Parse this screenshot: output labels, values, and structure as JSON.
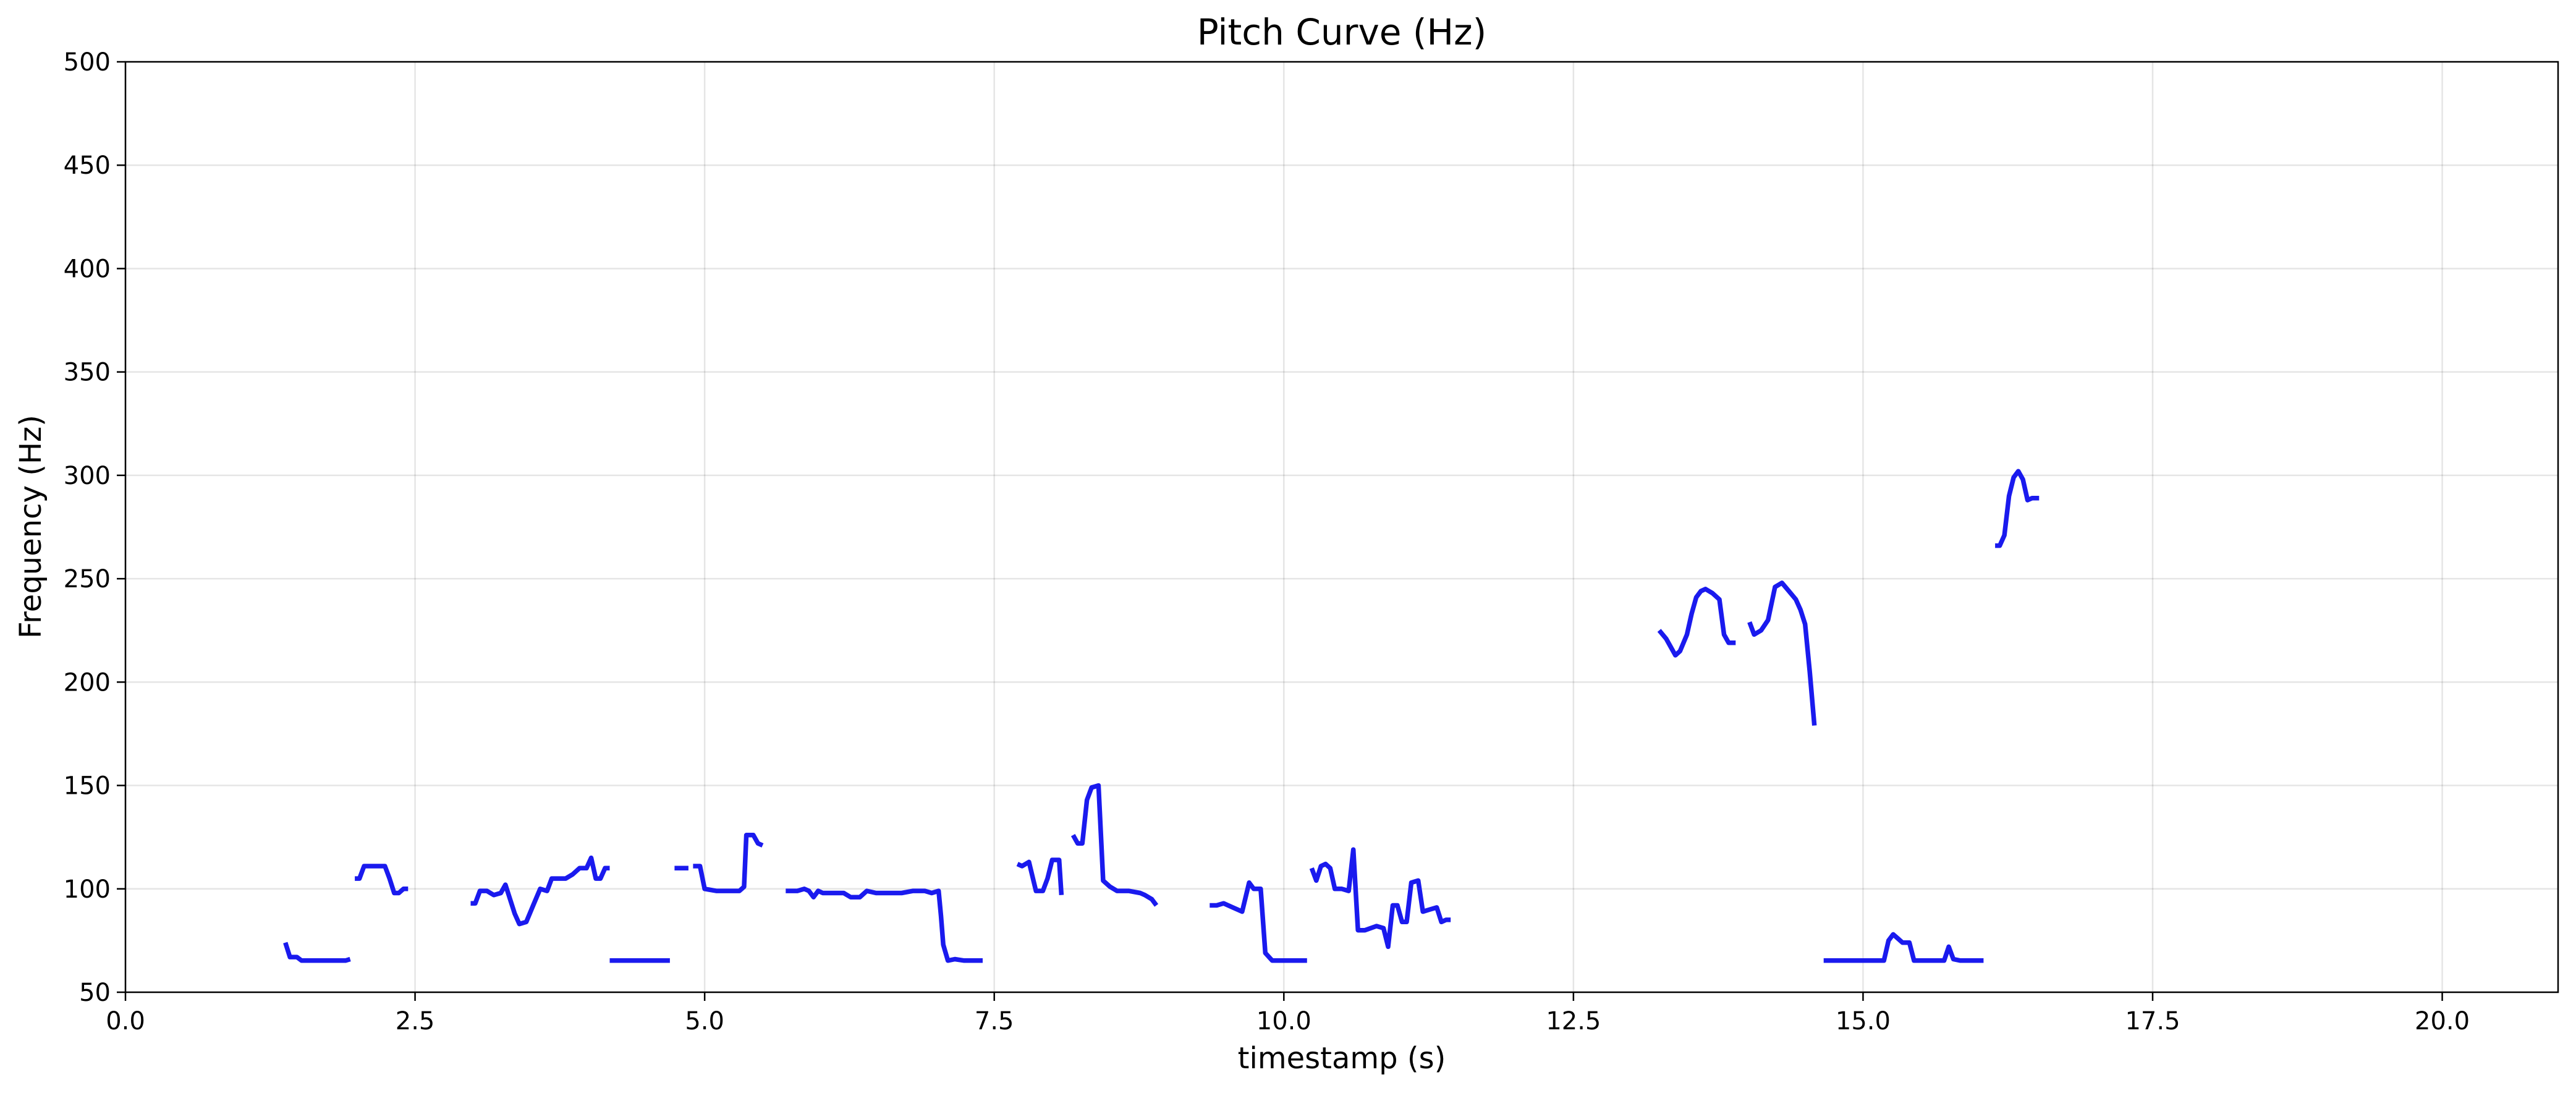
{
  "chart_data": {
    "type": "line",
    "title": "Pitch Curve (Hz)",
    "xlabel": "timestamp (s)",
    "ylabel": "Frequency (Hz)",
    "xlim": [
      0,
      21
    ],
    "ylim": [
      50,
      500
    ],
    "xticks": [
      0,
      2.5,
      5,
      7.5,
      10,
      12.5,
      15,
      17.5,
      20
    ],
    "xtick_labels": [
      "0.0",
      "2.5",
      "5.0",
      "7.5",
      "10.0",
      "12.5",
      "15.0",
      "17.5",
      "20.0"
    ],
    "yticks": [
      50,
      100,
      150,
      200,
      250,
      300,
      350,
      400,
      450,
      500
    ],
    "ytick_labels": [
      "50",
      "100",
      "150",
      "200",
      "250",
      "300",
      "350",
      "400",
      "450",
      "500"
    ],
    "grid": true,
    "line_color": "#1a1aee",
    "series": [
      {
        "segments": [
          [
            [
              1.38,
              74
            ],
            [
              1.42,
              67
            ],
            [
              1.48,
              67
            ],
            [
              1.52,
              65.3
            ],
            [
              1.6,
              65.3
            ],
            [
              1.7,
              65.3
            ],
            [
              1.8,
              65.3
            ],
            [
              1.9,
              65.3
            ],
            [
              1.94,
              66
            ]
          ],
          [
            [
              1.98,
              105
            ],
            [
              2.02,
              105
            ],
            [
              2.06,
              111
            ],
            [
              2.12,
              111
            ],
            [
              2.2,
              111
            ],
            [
              2.24,
              111
            ],
            [
              2.28,
              105
            ],
            [
              2.32,
              98
            ],
            [
              2.36,
              98
            ],
            [
              2.4,
              100
            ],
            [
              2.44,
              100
            ]
          ],
          [
            [
              2.98,
              93
            ],
            [
              3.02,
              93
            ],
            [
              3.06,
              99
            ],
            [
              3.12,
              99
            ],
            [
              3.18,
              97
            ],
            [
              3.24,
              98
            ],
            [
              3.28,
              102
            ],
            [
              3.32,
              95
            ],
            [
              3.36,
              88
            ],
            [
              3.4,
              83
            ],
            [
              3.46,
              84
            ],
            [
              3.52,
              92
            ],
            [
              3.58,
              100
            ],
            [
              3.64,
              99
            ],
            [
              3.68,
              105
            ],
            [
              3.74,
              105
            ],
            [
              3.8,
              105
            ],
            [
              3.86,
              107
            ],
            [
              3.92,
              110
            ],
            [
              3.98,
              110
            ],
            [
              4.02,
              115
            ],
            [
              4.06,
              105
            ],
            [
              4.1,
              105
            ],
            [
              4.14,
              110
            ],
            [
              4.18,
              110
            ]
          ],
          [
            [
              4.18,
              65.3
            ],
            [
              4.3,
              65.3
            ],
            [
              4.45,
              65.3
            ],
            [
              4.6,
              65.3
            ],
            [
              4.7,
              65.3
            ]
          ],
          [
            [
              4.74,
              110
            ],
            [
              4.86,
              110
            ]
          ],
          [
            [
              4.9,
              111
            ],
            [
              4.96,
              111
            ],
            [
              5.0,
              100
            ],
            [
              5.1,
              99
            ],
            [
              5.2,
              99
            ],
            [
              5.3,
              99
            ],
            [
              5.34,
              101
            ],
            [
              5.36,
              126
            ],
            [
              5.42,
              126
            ],
            [
              5.46,
              122
            ],
            [
              5.5,
              121
            ]
          ],
          [
            [
              5.7,
              99
            ],
            [
              5.8,
              99
            ],
            [
              5.86,
              100
            ],
            [
              5.9,
              99
            ],
            [
              5.94,
              96
            ],
            [
              5.98,
              99
            ],
            [
              6.02,
              98
            ],
            [
              6.1,
              98
            ],
            [
              6.2,
              98
            ],
            [
              6.26,
              96
            ],
            [
              6.34,
              96
            ],
            [
              6.4,
              99
            ],
            [
              6.48,
              98
            ],
            [
              6.6,
              98
            ],
            [
              6.7,
              98
            ],
            [
              6.8,
              99
            ],
            [
              6.9,
              99
            ],
            [
              6.96,
              98
            ],
            [
              7.02,
              99
            ],
            [
              7.04,
              87
            ],
            [
              7.06,
              73
            ],
            [
              7.1,
              65.3
            ],
            [
              7.16,
              66
            ],
            [
              7.24,
              65.3
            ],
            [
              7.32,
              65.3
            ],
            [
              7.4,
              65.3
            ]
          ],
          [
            [
              7.7,
              112
            ],
            [
              7.74,
              111
            ],
            [
              7.8,
              113
            ],
            [
              7.86,
              99
            ],
            [
              7.92,
              99
            ],
            [
              7.96,
              105
            ],
            [
              8.0,
              114
            ],
            [
              8.06,
              114
            ],
            [
              8.08,
              97
            ]
          ],
          [
            [
              8.18,
              126
            ],
            [
              8.22,
              122
            ],
            [
              8.26,
              122
            ],
            [
              8.3,
              143
            ],
            [
              8.34,
              149
            ],
            [
              8.4,
              150
            ],
            [
              8.44,
              104
            ],
            [
              8.5,
              101
            ],
            [
              8.56,
              99
            ],
            [
              8.66,
              99
            ],
            [
              8.76,
              98
            ],
            [
              8.8,
              97
            ],
            [
              8.86,
              95
            ],
            [
              8.9,
              92
            ]
          ],
          [
            [
              9.36,
              92
            ],
            [
              9.42,
              92
            ],
            [
              9.48,
              93
            ],
            [
              9.56,
              91
            ],
            [
              9.64,
              89
            ],
            [
              9.7,
              103
            ],
            [
              9.74,
              100
            ],
            [
              9.8,
              100
            ],
            [
              9.84,
              69
            ],
            [
              9.9,
              65.3
            ],
            [
              10.0,
              65.3
            ],
            [
              10.1,
              65.3
            ],
            [
              10.2,
              65.3
            ]
          ],
          [
            [
              10.24,
              110
            ],
            [
              10.28,
              104
            ],
            [
              10.32,
              111
            ],
            [
              10.36,
              112
            ],
            [
              10.4,
              110
            ],
            [
              10.44,
              100
            ],
            [
              10.5,
              100
            ],
            [
              10.56,
              99
            ],
            [
              10.6,
              119
            ],
            [
              10.64,
              80
            ],
            [
              10.7,
              80
            ],
            [
              10.8,
              82
            ],
            [
              10.86,
              81
            ],
            [
              10.9,
              72
            ],
            [
              10.94,
              92
            ],
            [
              10.98,
              92
            ],
            [
              11.02,
              84
            ],
            [
              11.06,
              84
            ],
            [
              11.1,
              103
            ],
            [
              11.16,
              104
            ],
            [
              11.2,
              89
            ],
            [
              11.26,
              90
            ],
            [
              11.32,
              91
            ],
            [
              11.36,
              84
            ],
            [
              11.4,
              85
            ],
            [
              11.44,
              85
            ]
          ],
          [
            [
              13.24,
              225
            ],
            [
              13.3,
              221
            ],
            [
              13.34,
              217
            ],
            [
              13.38,
              213
            ],
            [
              13.42,
              215
            ],
            [
              13.48,
              223
            ],
            [
              13.52,
              233
            ],
            [
              13.56,
              241
            ],
            [
              13.6,
              244
            ],
            [
              13.64,
              245
            ],
            [
              13.7,
              243
            ],
            [
              13.76,
              240
            ],
            [
              13.8,
              223
            ],
            [
              13.84,
              219
            ],
            [
              13.9,
              219
            ]
          ],
          [
            [
              14.02,
              229
            ],
            [
              14.06,
              223
            ],
            [
              14.12,
              225
            ],
            [
              14.18,
              230
            ],
            [
              14.24,
              246
            ],
            [
              14.3,
              248
            ],
            [
              14.36,
              244
            ],
            [
              14.42,
              240
            ],
            [
              14.46,
              235
            ],
            [
              14.5,
              228
            ],
            [
              14.54,
              205
            ],
            [
              14.58,
              179
            ]
          ],
          [
            [
              14.66,
              65.3
            ],
            [
              14.8,
              65.3
            ],
            [
              14.95,
              65.3
            ],
            [
              15.1,
              65.3
            ],
            [
              15.18,
              65.3
            ],
            [
              15.22,
              75
            ],
            [
              15.26,
              78
            ],
            [
              15.3,
              76
            ],
            [
              15.34,
              74
            ],
            [
              15.4,
              74
            ],
            [
              15.44,
              65.3
            ],
            [
              15.5,
              65.3
            ],
            [
              15.6,
              65.3
            ],
            [
              15.66,
              65.3
            ],
            [
              15.7,
              65.3
            ],
            [
              15.74,
              72
            ],
            [
              15.78,
              66
            ],
            [
              15.84,
              65.3
            ],
            [
              15.9,
              65.3
            ],
            [
              16.0,
              65.3
            ],
            [
              16.04,
              65.3
            ]
          ],
          [
            [
              16.14,
              266
            ],
            [
              16.18,
              266
            ],
            [
              16.22,
              271
            ],
            [
              16.26,
              290
            ],
            [
              16.3,
              299
            ],
            [
              16.34,
              302
            ],
            [
              16.38,
              298
            ],
            [
              16.42,
              288
            ],
            [
              16.46,
              289
            ],
            [
              16.52,
              289
            ]
          ]
        ]
      }
    ]
  }
}
